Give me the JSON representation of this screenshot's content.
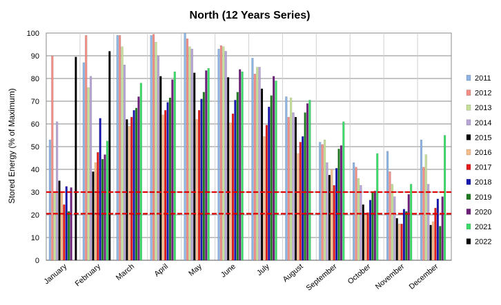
{
  "chart_data": {
    "type": "bar",
    "title": "North (12 Years Series)",
    "xlabel": "",
    "ylabel": "Stored Energy (% of Maximum)",
    "ylim": [
      0,
      100
    ],
    "yticks": [
      0,
      10,
      20,
      30,
      40,
      50,
      60,
      70,
      80,
      90,
      100
    ],
    "grid": true,
    "legend_position": "right",
    "categories": [
      "January",
      "February",
      "March",
      "April",
      "May",
      "June",
      "July",
      "August",
      "September",
      "October",
      "November",
      "December"
    ],
    "reference_lines": [
      30,
      20.5
    ],
    "reference_line_color": "#e00000",
    "series": [
      {
        "name": "2011",
        "color": "#8db4e2",
        "values": [
          53,
          87,
          99,
          99,
          100,
          93,
          89,
          72,
          52,
          43,
          48,
          53
        ]
      },
      {
        "name": "2012",
        "color": "#f28e86",
        "values": [
          90,
          99,
          99,
          99.5,
          97.5,
          94.5,
          82,
          63,
          51,
          41,
          39,
          41
        ]
      },
      {
        "name": "2013",
        "color": "#c6e09a",
        "values": [
          30,
          76,
          94,
          96,
          94,
          94,
          85,
          71.5,
          53,
          36,
          33.5,
          46.5
        ]
      },
      {
        "name": "2014",
        "color": "#b7a6d6",
        "values": [
          61,
          81,
          86,
          90,
          93,
          92,
          85,
          65,
          43,
          33,
          28,
          33.5
        ]
      },
      {
        "name": "2015",
        "color": "#000000",
        "values": [
          35,
          39,
          62,
          81,
          82.5,
          80.5,
          75.5,
          63,
          37.5,
          24.5,
          18.5,
          15.5
        ]
      },
      {
        "name": "2016",
        "color": "#f7be8c",
        "values": [
          30,
          43,
          59,
          64,
          62,
          60.5,
          54.5,
          47,
          40,
          20,
          16,
          17
        ]
      },
      {
        "name": "2017",
        "color": "#e41a1a",
        "values": [
          24.5,
          47.5,
          63,
          66,
          66,
          64.5,
          59.5,
          52,
          33,
          21,
          16,
          23
        ]
      },
      {
        "name": "2018",
        "color": "#1515b0",
        "values": [
          32.5,
          62.5,
          66,
          69.5,
          71,
          70.5,
          67.5,
          54.5,
          40.5,
          26.5,
          22.5,
          27
        ]
      },
      {
        "name": "2019",
        "color": "#1f7a1f",
        "values": [
          21.5,
          44.5,
          67,
          71.5,
          74,
          74,
          72.5,
          65,
          49,
          30,
          21.5,
          15
        ]
      },
      {
        "name": "2020",
        "color": "#6e1f7a",
        "values": [
          32,
          46.5,
          72,
          79.5,
          83.5,
          84,
          81,
          69,
          50.5,
          30.5,
          29,
          28
        ]
      },
      {
        "name": "2021",
        "color": "#3ddc6a",
        "values": [
          null,
          52.5,
          78,
          83,
          84.5,
          83,
          79,
          70.5,
          61,
          47,
          33.5,
          55
        ]
      },
      {
        "name": "2022",
        "color": "#000000",
        "values": [
          89.5,
          92,
          null,
          null,
          null,
          null,
          null,
          null,
          null,
          null,
          null,
          null
        ]
      }
    ]
  }
}
